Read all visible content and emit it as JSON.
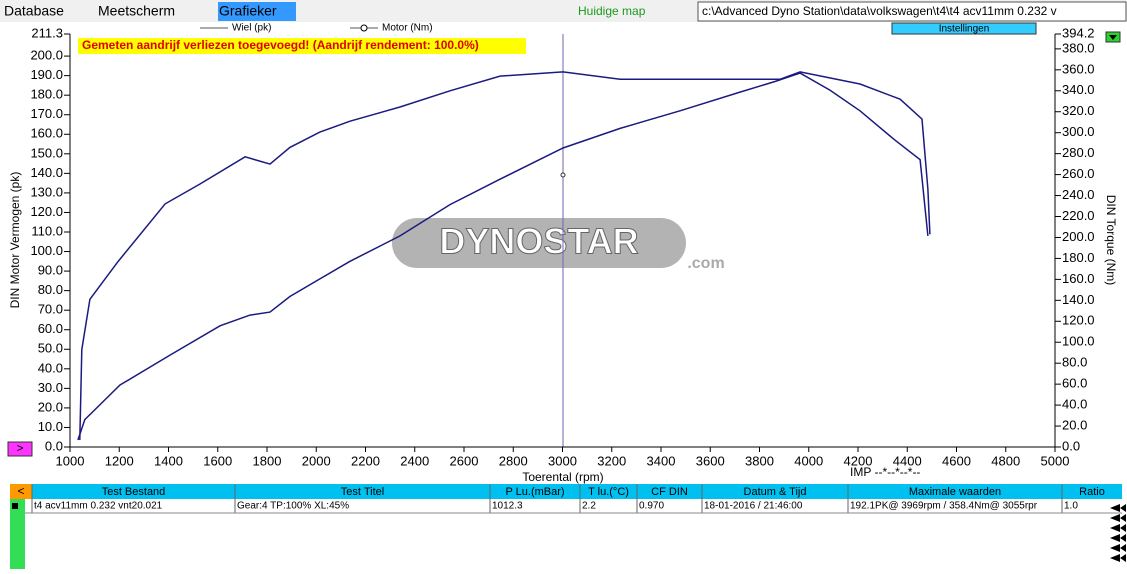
{
  "menu": {
    "database": "Database",
    "meetscherm": "Meetscherm",
    "grafieker": "Grafieker",
    "huidige_map": "Huidige map",
    "path": "c:\\Advanced Dyno Station\\data\\volkswagen\\t4\\t4 acv11mm 0.232 v",
    "instellingen": "Instellingen"
  },
  "watermark": {
    "logo": "DYNOSTAR",
    "suffix": ".com"
  },
  "chart_data": {
    "type": "line",
    "annotation": "Gemeten aandrijf verliezen toegevoegd! (Aandrijf rendement: 100.0%)",
    "x_label": "Toerental (rpm)",
    "y_label": "DIN Motor Vermogen (pk)",
    "y2_label": "DIN Torque (Nm)",
    "imp_label": "IMP --*--*--*--",
    "xlim": [
      1000,
      5000
    ],
    "xticks": [
      1000,
      1200,
      1400,
      1600,
      1800,
      2000,
      2200,
      2400,
      2600,
      2800,
      3000,
      3200,
      3400,
      3600,
      3800,
      4000,
      4200,
      4400,
      4600,
      4800,
      5000
    ],
    "ylim": [
      0,
      211.3
    ],
    "yticks": [
      {
        "value": 0,
        "label": "0.0"
      },
      {
        "value": 10,
        "label": "10.0"
      },
      {
        "value": 20,
        "label": "20.0"
      },
      {
        "value": 30,
        "label": "30.0"
      },
      {
        "value": 40,
        "label": "40.0"
      },
      {
        "value": 50,
        "label": "50.0"
      },
      {
        "value": 60,
        "label": "60.0"
      },
      {
        "value": 70,
        "label": "70.0"
      },
      {
        "value": 80,
        "label": "80.0"
      },
      {
        "value": 90,
        "label": "90.0"
      },
      {
        "value": 100,
        "label": "100.0"
      },
      {
        "value": 110,
        "label": "110.0"
      },
      {
        "value": 120,
        "label": "120.0"
      },
      {
        "value": 130,
        "label": "130.0"
      },
      {
        "value": 140,
        "label": "140.0"
      },
      {
        "value": 150,
        "label": "150.0"
      },
      {
        "value": 160,
        "label": "160.0"
      },
      {
        "value": 170,
        "label": "170.0"
      },
      {
        "value": 180,
        "label": "180.0"
      },
      {
        "value": 190,
        "label": "190.0"
      },
      {
        "value": 200,
        "label": "200.0"
      },
      211.3
    ],
    "y2lim": [
      0,
      394.2
    ],
    "y2ticks": [
      {
        "value": 0,
        "label": "0.0"
      },
      {
        "value": 20,
        "label": "20.0"
      },
      {
        "value": 40,
        "label": "40.0"
      },
      {
        "value": 60,
        "label": "60.0"
      },
      {
        "value": 80,
        "label": "80.0"
      },
      {
        "value": 100,
        "label": "100.0"
      },
      {
        "value": 120,
        "label": "120.0"
      },
      {
        "value": 140,
        "label": "140.0"
      },
      {
        "value": 160,
        "label": "160.0"
      },
      {
        "value": 180,
        "label": "180.0"
      },
      {
        "value": 200,
        "label": "200.0"
      },
      {
        "value": 220,
        "label": "220.0"
      },
      {
        "value": 240,
        "label": "240.0"
      },
      {
        "value": 260,
        "label": "260.0"
      },
      {
        "value": 280,
        "label": "280.0"
      },
      {
        "value": 300,
        "label": "300.0"
      },
      {
        "value": 320,
        "label": "320.0"
      },
      {
        "value": 340,
        "label": "340.0"
      },
      {
        "value": 360,
        "label": "360.0"
      },
      {
        "value": 380,
        "label": "380.0"
      },
      394.2
    ],
    "series": [
      {
        "name": "Wiel (pk)",
        "color": "#1a1a80",
        "marker": "none",
        "x": [
          1032,
          1060,
          1203,
          1406,
          1609,
          1731,
          1812,
          1893,
          2015,
          2137,
          2340,
          2543,
          2746,
          3002,
          3234,
          3477,
          3721,
          3863,
          3965,
          4086,
          4208,
          4350,
          4452,
          4484
        ],
        "values": [
          3.6,
          14,
          31.7,
          47,
          62,
          67.5,
          69,
          77,
          86,
          95,
          108,
          124,
          137,
          153,
          163,
          172,
          181.6,
          187,
          191.3,
          182.6,
          172,
          157,
          147,
          108
        ]
      },
      {
        "name": "Motor (Nm)",
        "color": "#1a1a80",
        "marker": "circle",
        "axis": "y2",
        "x": [
          1040,
          1048,
          1081,
          1195,
          1386,
          1528,
          1711,
          1812,
          1893,
          2015,
          2137,
          2340,
          2543,
          2746,
          3002,
          3234,
          3558,
          3883,
          3965,
          4208,
          4371,
          4460,
          4484,
          4492
        ],
        "values": [
          6.7,
          93,
          141,
          177,
          232,
          251,
          277,
          270,
          286,
          300.6,
          311,
          324.5,
          340,
          354,
          358,
          351,
          351,
          351,
          358,
          346.5,
          332,
          313,
          246,
          203
        ]
      }
    ]
  },
  "table": {
    "back": "<",
    "headers": [
      "Test Bestand",
      "Test Titel",
      "P Lu.(mBar)",
      "T lu.(°C)",
      "CF DIN",
      "Datum & Tijd",
      "Maximale waarden",
      "Ratio"
    ],
    "rows": [
      [
        "t4 acv11mm 0.232 vnt20.021",
        "Gear:4 TP:100% XL:45%",
        "1012.3",
        "2.2",
        "0.970",
        "18-01-2016 / 21:46:00",
        "192.1PK@ 3969rpm / 358.4Nm@ 3055rpr",
        "1.0"
      ]
    ]
  }
}
